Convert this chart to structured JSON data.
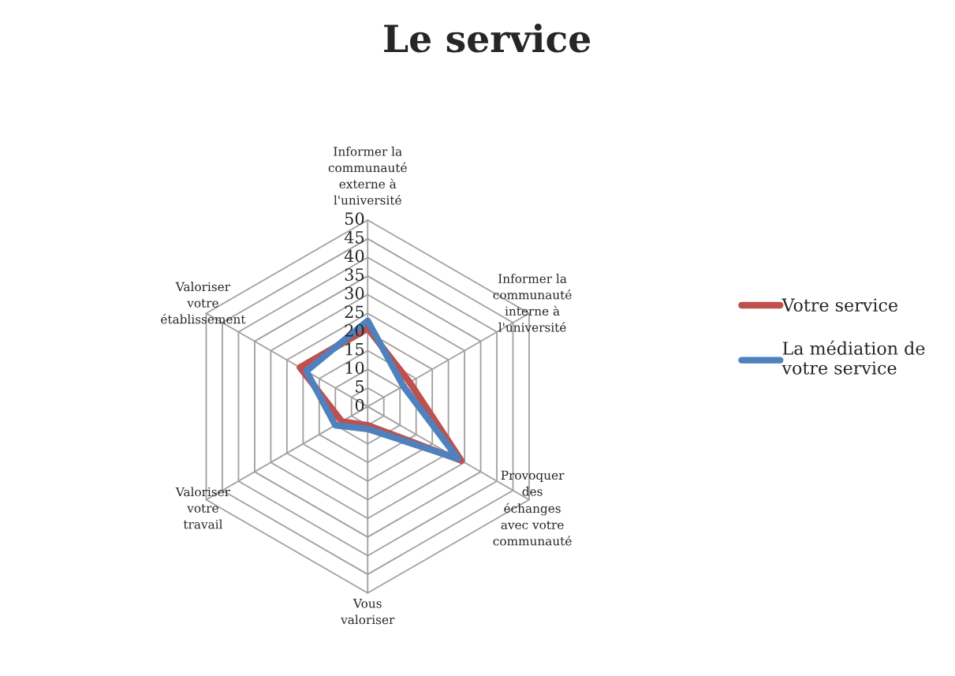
{
  "chart_data": {
    "type": "radar",
    "title": "Le service",
    "categories": [
      "Informer la\ncommunauté\nexterne à\nl'université",
      "Informer la\ncommunauté\ninterne à\nl'université",
      "Provoquer\ndes\néchanges\navec votre\ncommunauté",
      "Vous\nvaloriser",
      "Valoriser\nvotre\ntravail",
      "Valoriser\nvotre\nétablissement"
    ],
    "series": [
      {
        "name": "Votre service",
        "color": "#c0504d",
        "values": [
          21,
          13,
          29,
          5,
          8,
          21
        ]
      },
      {
        "name": "La médiation de\nvotre service",
        "color": "#4f81bd",
        "values": [
          23,
          11,
          28,
          6,
          10,
          19
        ]
      }
    ],
    "ylim": [
      0,
      50
    ],
    "yticks": [
      0,
      5,
      10,
      15,
      20,
      25,
      30,
      35,
      40,
      45,
      50
    ],
    "legend": "right",
    "marker": "none",
    "line_style": "solid"
  }
}
